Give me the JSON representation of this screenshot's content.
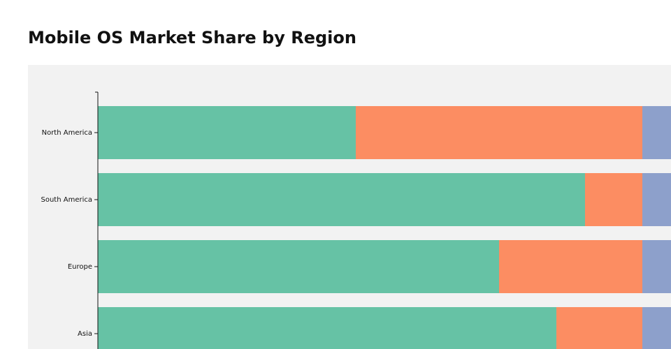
{
  "title": "Mobile OS Market Share by Region",
  "chart_data": {
    "type": "bar",
    "orientation": "horizontal",
    "stacked": true,
    "categories": [
      "North America",
      "South America",
      "Europe",
      "Asia"
    ],
    "series": [
      {
        "values": [
          45,
          85,
          70,
          80
        ],
        "color": "#66c2a5"
      },
      {
        "values": [
          50,
          10,
          25,
          15
        ],
        "color": "#fc8d62"
      },
      {
        "values": [
          5,
          5,
          5,
          5
        ],
        "color": "#8da0cb"
      }
    ],
    "xlim": [
      0,
      100
    ],
    "grid": false
  }
}
